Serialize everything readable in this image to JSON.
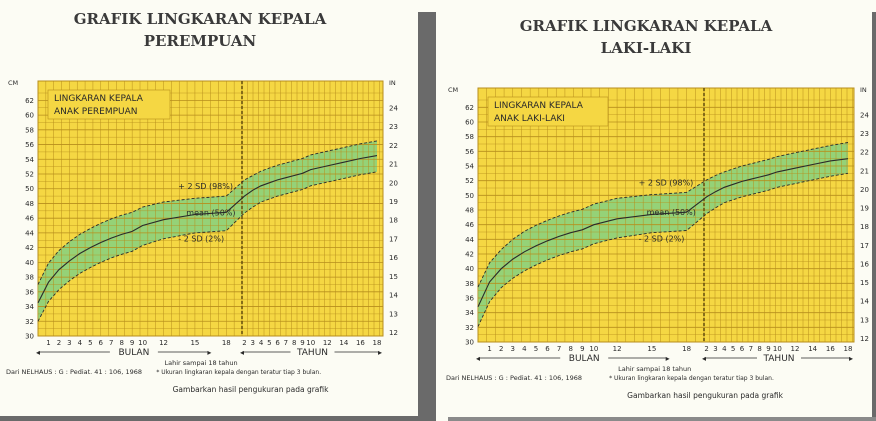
{
  "colors": {
    "plot_bg": "#f5d743",
    "band": "#8fd27a",
    "grid": "#b78e1c",
    "text": "#2a2a2a",
    "panel_bg": "#fcfcf4"
  },
  "chart_data": [
    {
      "type": "line",
      "title_line1": "GRAFIK LINGKARAN KEPALA",
      "title_line2": "PEREMPUAN",
      "legend_line1": "LINGKARAN KEPALA",
      "legend_line2": "ANAK PEREMPUAN",
      "left_unit": "CM",
      "right_unit": "IN",
      "y_cm_ticks": [
        30,
        32,
        34,
        36,
        38,
        40,
        42,
        44,
        46,
        48,
        50,
        52,
        54,
        56,
        58,
        60,
        62
      ],
      "y_in_ticks": [
        12,
        13,
        14,
        15,
        16,
        17,
        18,
        19,
        20,
        21,
        22,
        23,
        24
      ],
      "ylim_cm": [
        30,
        63
      ],
      "month_ticks": [
        "1",
        "2",
        "3",
        "4",
        "5",
        "6",
        "7",
        "8",
        "9",
        "10",
        "12",
        "15",
        "18"
      ],
      "year_ticks": [
        "2",
        "3",
        "4",
        "5",
        "6",
        "7",
        "8",
        "9",
        "10",
        "12",
        "14",
        "16",
        "18"
      ],
      "xaxis_months_label": "BULAN",
      "xaxis_years_label": "TAHUN",
      "birth_note": "Lahir sampai 18 tahun",
      "source": "Dari NELHAUS : G : Pediat. 41 : 106, 1968",
      "footnote": "* Ukuran lingkaran kepala dengan teratur tiap 3 bulan.",
      "caption": "Gambarkan hasil pengukuran pada grafik",
      "series": [
        {
          "name": "+ 2 SD (98%)",
          "values": [
            37,
            39.9,
            41.6,
            42.8,
            43.8,
            44.6,
            45.3,
            45.9,
            46.4,
            46.8,
            47.5,
            48.2,
            48.7,
            49,
            51.2,
            51.8,
            52.4,
            52.8,
            53.2,
            53.5,
            53.8,
            54.1,
            54.6,
            55.1,
            55.6,
            56.1,
            56.5
          ]
        },
        {
          "name": "mean (50%)",
          "values": [
            34.5,
            37.3,
            39,
            40.2,
            41.2,
            42,
            42.7,
            43.3,
            43.8,
            44.2,
            45,
            45.8,
            46.5,
            46.8,
            49,
            49.8,
            50.4,
            50.8,
            51.2,
            51.5,
            51.8,
            52.1,
            52.6,
            53.1,
            53.6,
            54.1,
            54.5
          ]
        },
        {
          "name": "- 2 SD (2%)",
          "values": [
            32,
            34.7,
            36.3,
            37.5,
            38.5,
            39.3,
            40,
            40.6,
            41.1,
            41.5,
            42.3,
            43.2,
            44,
            44.3,
            46.7,
            47.5,
            48.2,
            48.6,
            49,
            49.3,
            49.6,
            49.9,
            50.4,
            50.9,
            51.4,
            51.9,
            52.3
          ]
        }
      ]
    },
    {
      "type": "line",
      "title_line1": "GRAFIK LINGKARAN KEPALA",
      "title_line2": "LAKI-LAKI",
      "legend_line1": "LINGKARAN KEPALA",
      "legend_line2": "ANAK LAKI-LAKI",
      "left_unit": "CM",
      "right_unit": "IN",
      "y_cm_ticks": [
        30,
        32,
        34,
        36,
        38,
        40,
        42,
        44,
        46,
        48,
        50,
        52,
        54,
        56,
        58,
        60,
        62
      ],
      "y_in_ticks": [
        12,
        13,
        14,
        15,
        16,
        17,
        18,
        19,
        20,
        21,
        22,
        23,
        24
      ],
      "ylim_cm": [
        30,
        63
      ],
      "month_ticks": [
        "1",
        "2",
        "3",
        "4",
        "5",
        "6",
        "7",
        "8",
        "9",
        "10",
        "12",
        "15",
        "18"
      ],
      "year_ticks": [
        "2",
        "3",
        "4",
        "5",
        "6",
        "7",
        "8",
        "9",
        "10",
        "12",
        "14",
        "16",
        "18"
      ],
      "xaxis_months_label": "BULAN",
      "xaxis_years_label": "TAHUN",
      "birth_note": "Lahir sampai 18 tahun",
      "source": "Dari NELHAUS : G : Pediat. 41 : 106, 1968",
      "footnote": "* Ukuran lingkaran kepala dengan teratur tiap 3 bulan.",
      "caption": "Gambarkan hasil pengukuran pada grafik",
      "series": [
        {
          "name": "+ 2 SD (98%)",
          "values": [
            37.5,
            40.8,
            42.6,
            44,
            45.1,
            45.9,
            46.6,
            47.2,
            47.7,
            48.1,
            48.8,
            49.6,
            50.1,
            50.4,
            52.1,
            52.7,
            53.2,
            53.6,
            54,
            54.3,
            54.6,
            54.9,
            55.3,
            55.8,
            56.3,
            56.8,
            57.2
          ]
        },
        {
          "name": "mean (50%)",
          "values": [
            34.8,
            38.2,
            40,
            41.3,
            42.3,
            43.1,
            43.8,
            44.4,
            44.9,
            45.3,
            46,
            46.8,
            47.4,
            47.7,
            49.8,
            50.5,
            51.1,
            51.5,
            51.9,
            52.2,
            52.5,
            52.8,
            53.2,
            53.7,
            54.2,
            54.7,
            55
          ]
        },
        {
          "name": "- 2 SD (2%)",
          "values": [
            32.1,
            35.5,
            37.4,
            38.7,
            39.7,
            40.5,
            41.2,
            41.8,
            42.3,
            42.7,
            43.4,
            44.2,
            44.9,
            45.2,
            47.5,
            48.3,
            49,
            49.4,
            49.8,
            50.1,
            50.4,
            50.7,
            51.1,
            51.6,
            52.1,
            52.6,
            53
          ]
        }
      ]
    }
  ]
}
